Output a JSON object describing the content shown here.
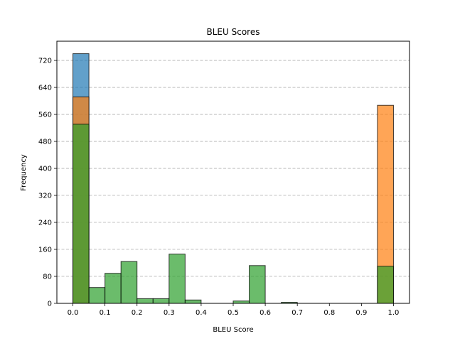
{
  "chart_data": {
    "type": "bar",
    "title": "BLEU Scores",
    "xlabel": "BLEU Score",
    "ylabel": "Frequency",
    "xlim": [
      -0.05,
      1.05
    ],
    "ylim": [
      0,
      777
    ],
    "x_ticks": [
      0.0,
      0.1,
      0.2,
      0.3,
      0.4,
      0.5,
      0.6,
      0.7,
      0.8,
      0.9,
      1.0
    ],
    "x_tick_labels": [
      "0.0",
      "0.1",
      "0.2",
      "0.3",
      "0.4",
      "0.5",
      "0.6",
      "0.7",
      "0.8",
      "0.9",
      "1.0"
    ],
    "y_ticks": [
      0,
      80,
      160,
      240,
      320,
      400,
      480,
      560,
      640,
      720
    ],
    "y_tick_labels": [
      "0",
      "80",
      "160",
      "240",
      "320",
      "400",
      "480",
      "560",
      "640",
      "720"
    ],
    "grid": "y-dashed",
    "bin_edges": [
      0.0,
      0.05,
      0.1,
      0.15,
      0.2,
      0.25,
      0.3,
      0.35,
      0.4,
      0.45,
      0.5,
      0.55,
      0.6,
      0.65,
      0.7,
      0.75,
      0.8,
      0.85,
      0.9,
      0.95,
      1.0
    ],
    "series": [
      {
        "color": "#1f77b4",
        "alpha": 0.7,
        "values": [
          740,
          0,
          0,
          0,
          0,
          0,
          0,
          0,
          0,
          0,
          0,
          0,
          0,
          0,
          0,
          0,
          0,
          0,
          0,
          0
        ]
      },
      {
        "color": "#ff7f0e",
        "alpha": 0.7,
        "values": [
          612,
          0,
          0,
          0,
          0,
          0,
          0,
          0,
          0,
          0,
          0,
          0,
          0,
          0,
          0,
          0,
          0,
          0,
          0,
          587
        ]
      },
      {
        "color": "#2ca02c",
        "alpha": 0.7,
        "values": [
          531,
          47,
          89,
          124,
          14,
          14,
          146,
          10,
          0,
          0,
          7,
          112,
          0,
          3,
          0,
          0,
          0,
          0,
          0,
          110
        ]
      }
    ]
  }
}
